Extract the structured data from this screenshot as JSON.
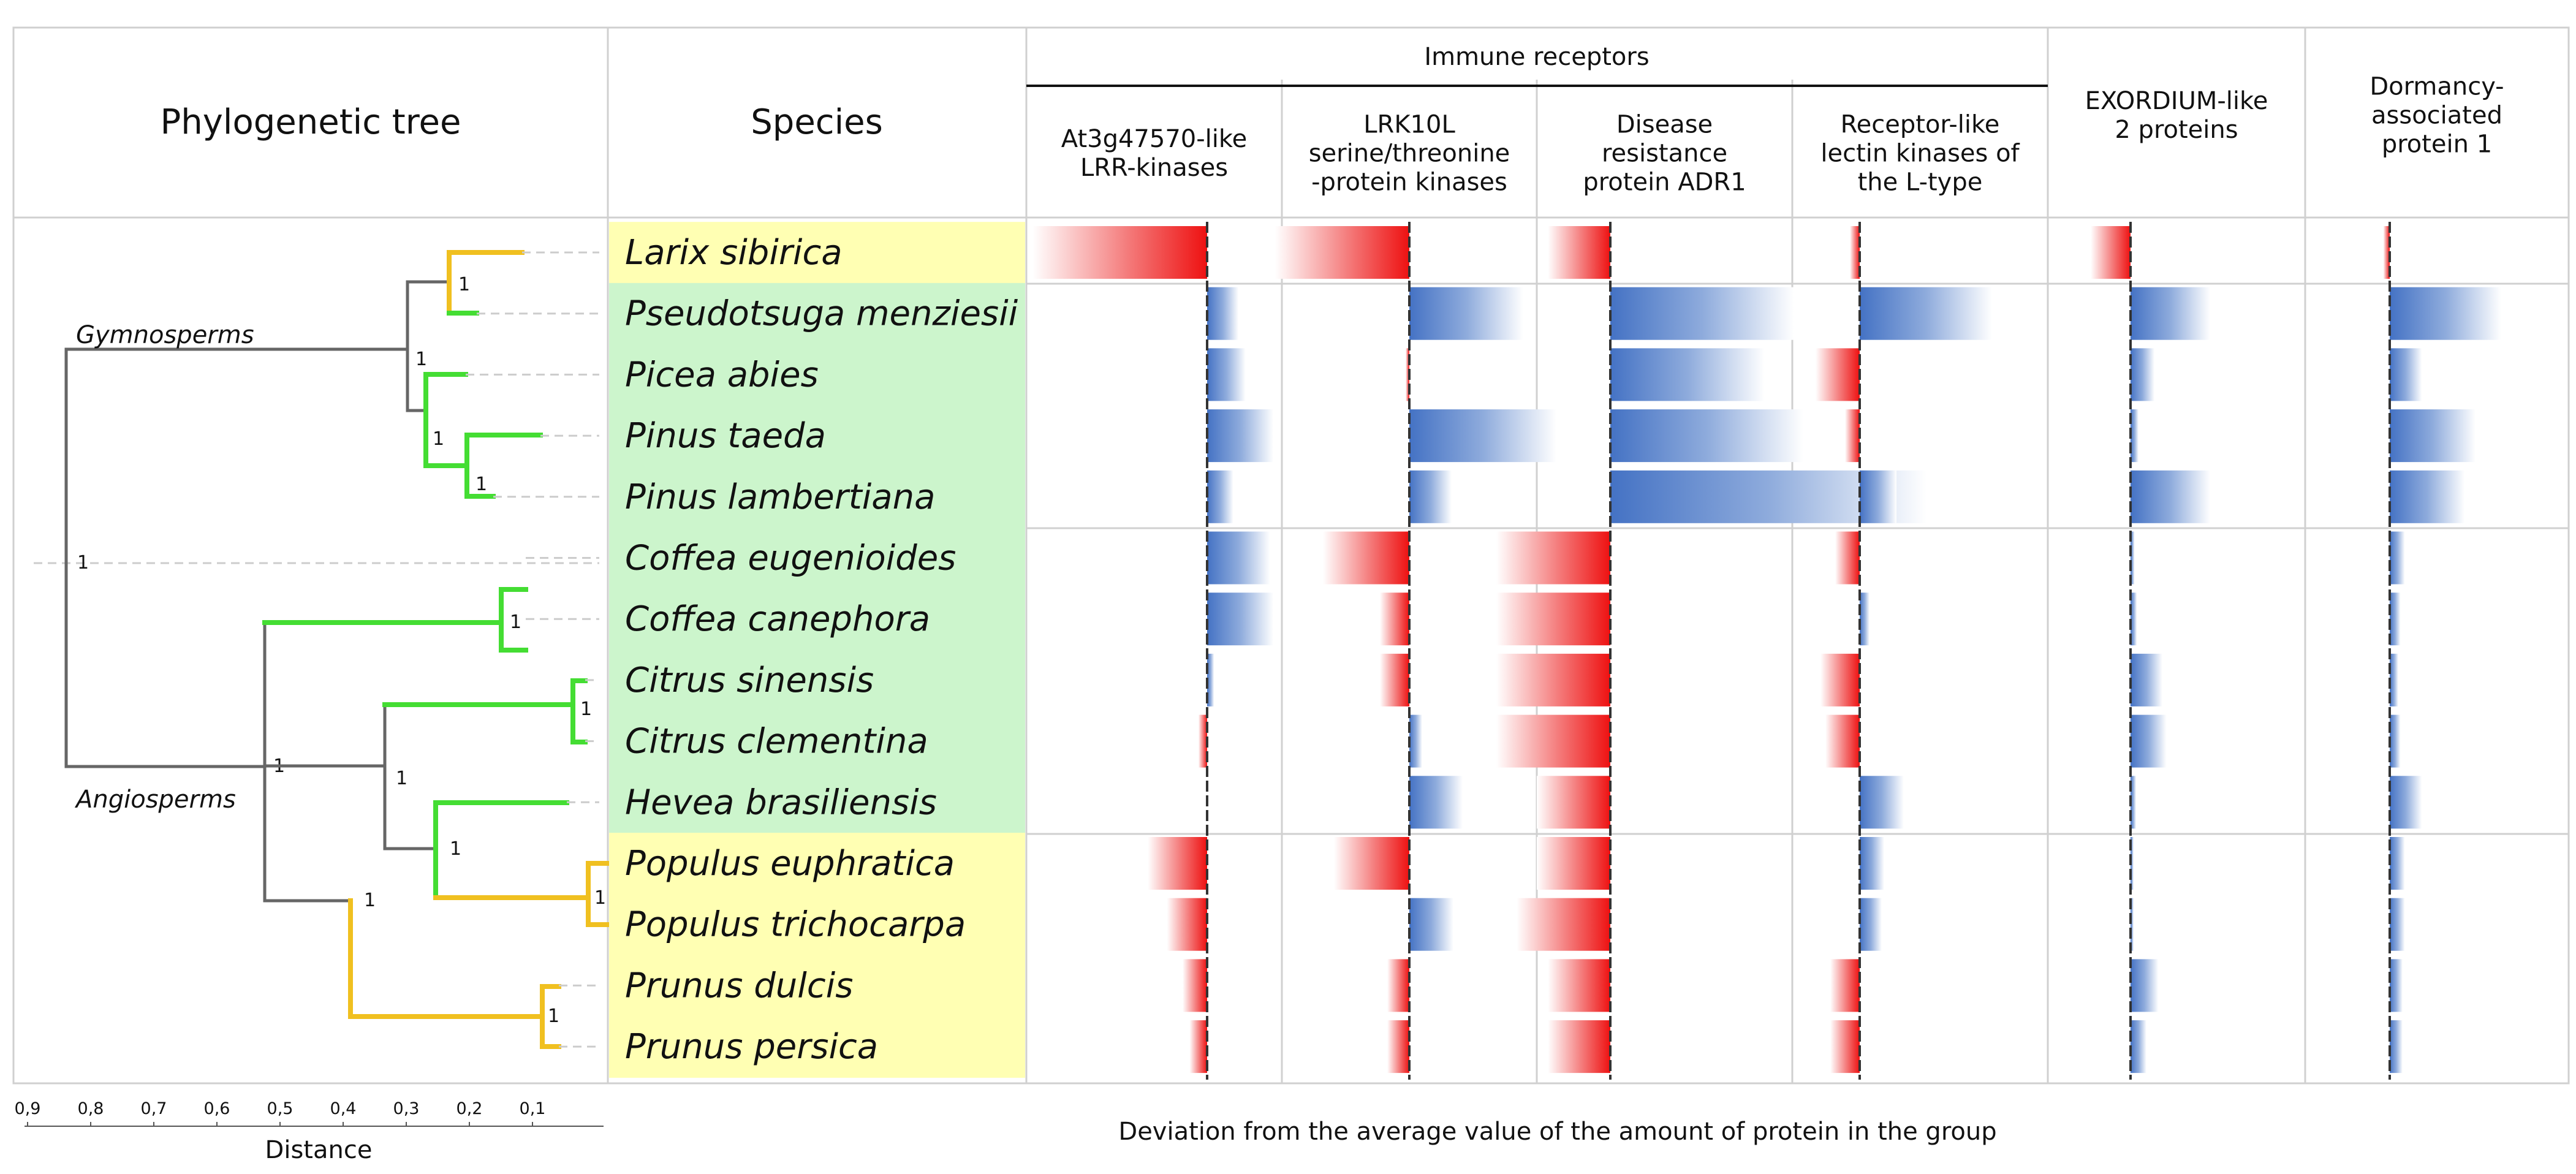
{
  "headers": {
    "tree": "Phylogenetic tree",
    "species": "Species",
    "immune_group": "Immune receptors"
  },
  "columns": [
    {
      "lines": [
        "At3g47570-like",
        "LRR-kinases"
      ]
    },
    {
      "lines": [
        "LRK10L",
        "serine/threonine",
        "-protein kinases"
      ]
    },
    {
      "lines": [
        "Disease",
        "resistance",
        "protein ADR1"
      ]
    },
    {
      "lines": [
        "Receptor-like",
        "lectin kinases of",
        "the L-type"
      ]
    },
    {
      "lines": [
        "EXORDIUM-like",
        "2 proteins"
      ]
    },
    {
      "lines": [
        "Dormancy-",
        "associated",
        "protein 1"
      ]
    }
  ],
  "species": [
    {
      "name": "Larix sibirica",
      "group": "yellow"
    },
    {
      "name": "Pseudotsuga menziesii",
      "group": "green"
    },
    {
      "name": "Picea abies",
      "group": "green"
    },
    {
      "name": "Pinus taeda",
      "group": "green"
    },
    {
      "name": "Pinus lambertiana",
      "group": "green"
    },
    {
      "name": "Coffea eugenioides",
      "group": "green"
    },
    {
      "name": "Coffea canephora",
      "group": "green"
    },
    {
      "name": "Citrus sinensis",
      "group": "green"
    },
    {
      "name": "Citrus clementina",
      "group": "green"
    },
    {
      "name": "Hevea brasiliensis",
      "group": "green"
    },
    {
      "name": "Populus euphratica",
      "group": "yellow"
    },
    {
      "name": "Populus trichocarpa",
      "group": "yellow"
    },
    {
      "name": "Prunus dulcis",
      "group": "yellow"
    },
    {
      "name": "Prunus persica",
      "group": "yellow"
    }
  ],
  "tree": {
    "clade_labels": [
      "Gymnosperms",
      "Angiosperms"
    ],
    "node_label": "1",
    "axis_ticks": [
      "0,9",
      "0,8",
      "0,7",
      "0,6",
      "0,5",
      "0,4",
      "0,3",
      "0,2",
      "0,1"
    ],
    "axis_label": "Distance"
  },
  "footer": "Deviation from the average value of the amount of protein in the group",
  "colors": {
    "negative": "#ee1111",
    "positive": "#4472c4",
    "yellow_highlight": "#ffffb3",
    "green_highlight": "#ccf5cc",
    "branch_green": "#44dd33",
    "branch_yellow": "#f0c020",
    "branch_gray": "#666666",
    "grid": "#d0d0d0"
  },
  "chart_data": {
    "type": "bar",
    "orientation": "horizontal",
    "note": "Per-column deviation from group average; values relative units, negative = left (red), positive = right (blue)",
    "categories": [
      "Larix sibirica",
      "Pseudotsuga menziesii",
      "Picea abies",
      "Pinus taeda",
      "Pinus lambertiana",
      "Coffea eugenioides",
      "Coffea canephora",
      "Citrus sinensis",
      "Citrus clementina",
      "Hevea brasiliensis",
      "Populus euphratica",
      "Populus trichocarpa",
      "Prunus dulcis",
      "Prunus persica"
    ],
    "series": [
      {
        "values": [
          -1.0,
          0.18,
          0.22,
          0.38,
          0.15,
          0.36,
          0.38,
          0.04,
          -0.05,
          0,
          -0.34,
          -0.23,
          -0.14,
          -0.1
        ]
      },
      {
        "values": [
          -0.73,
          0.62,
          -0.02,
          0.8,
          0.23,
          -0.47,
          -0.16,
          -0.16,
          0.07,
          0.29,
          -0.41,
          0.24,
          -0.12,
          -0.12
        ]
      },
      {
        "values": [
          -0.34,
          1.0,
          0.84,
          1.05,
          1.72,
          -0.62,
          -0.62,
          -0.62,
          -0.62,
          -0.4,
          -0.4,
          -0.51,
          -0.34,
          -0.34
        ]
      },
      {
        "values": [
          -0.4,
          5.4,
          -1.8,
          -0.6,
          1.5,
          -1.0,
          0.4,
          -1.6,
          -1.4,
          1.8,
          1.0,
          0.9,
          -1.2,
          -1.2
        ]
      },
      {
        "values": [
          -0.5,
          1.0,
          0.3,
          0.1,
          1.0,
          0.05,
          0.08,
          0.4,
          0.45,
          0.07,
          0.03,
          0.03,
          0.35,
          0.2
        ]
      },
      {
        "values": [
          -0.3,
          5.2,
          1.5,
          4.0,
          3.5,
          0.7,
          0.5,
          0.4,
          0.5,
          1.5,
          0.7,
          0.7,
          0.6,
          0.6
        ]
      }
    ]
  }
}
